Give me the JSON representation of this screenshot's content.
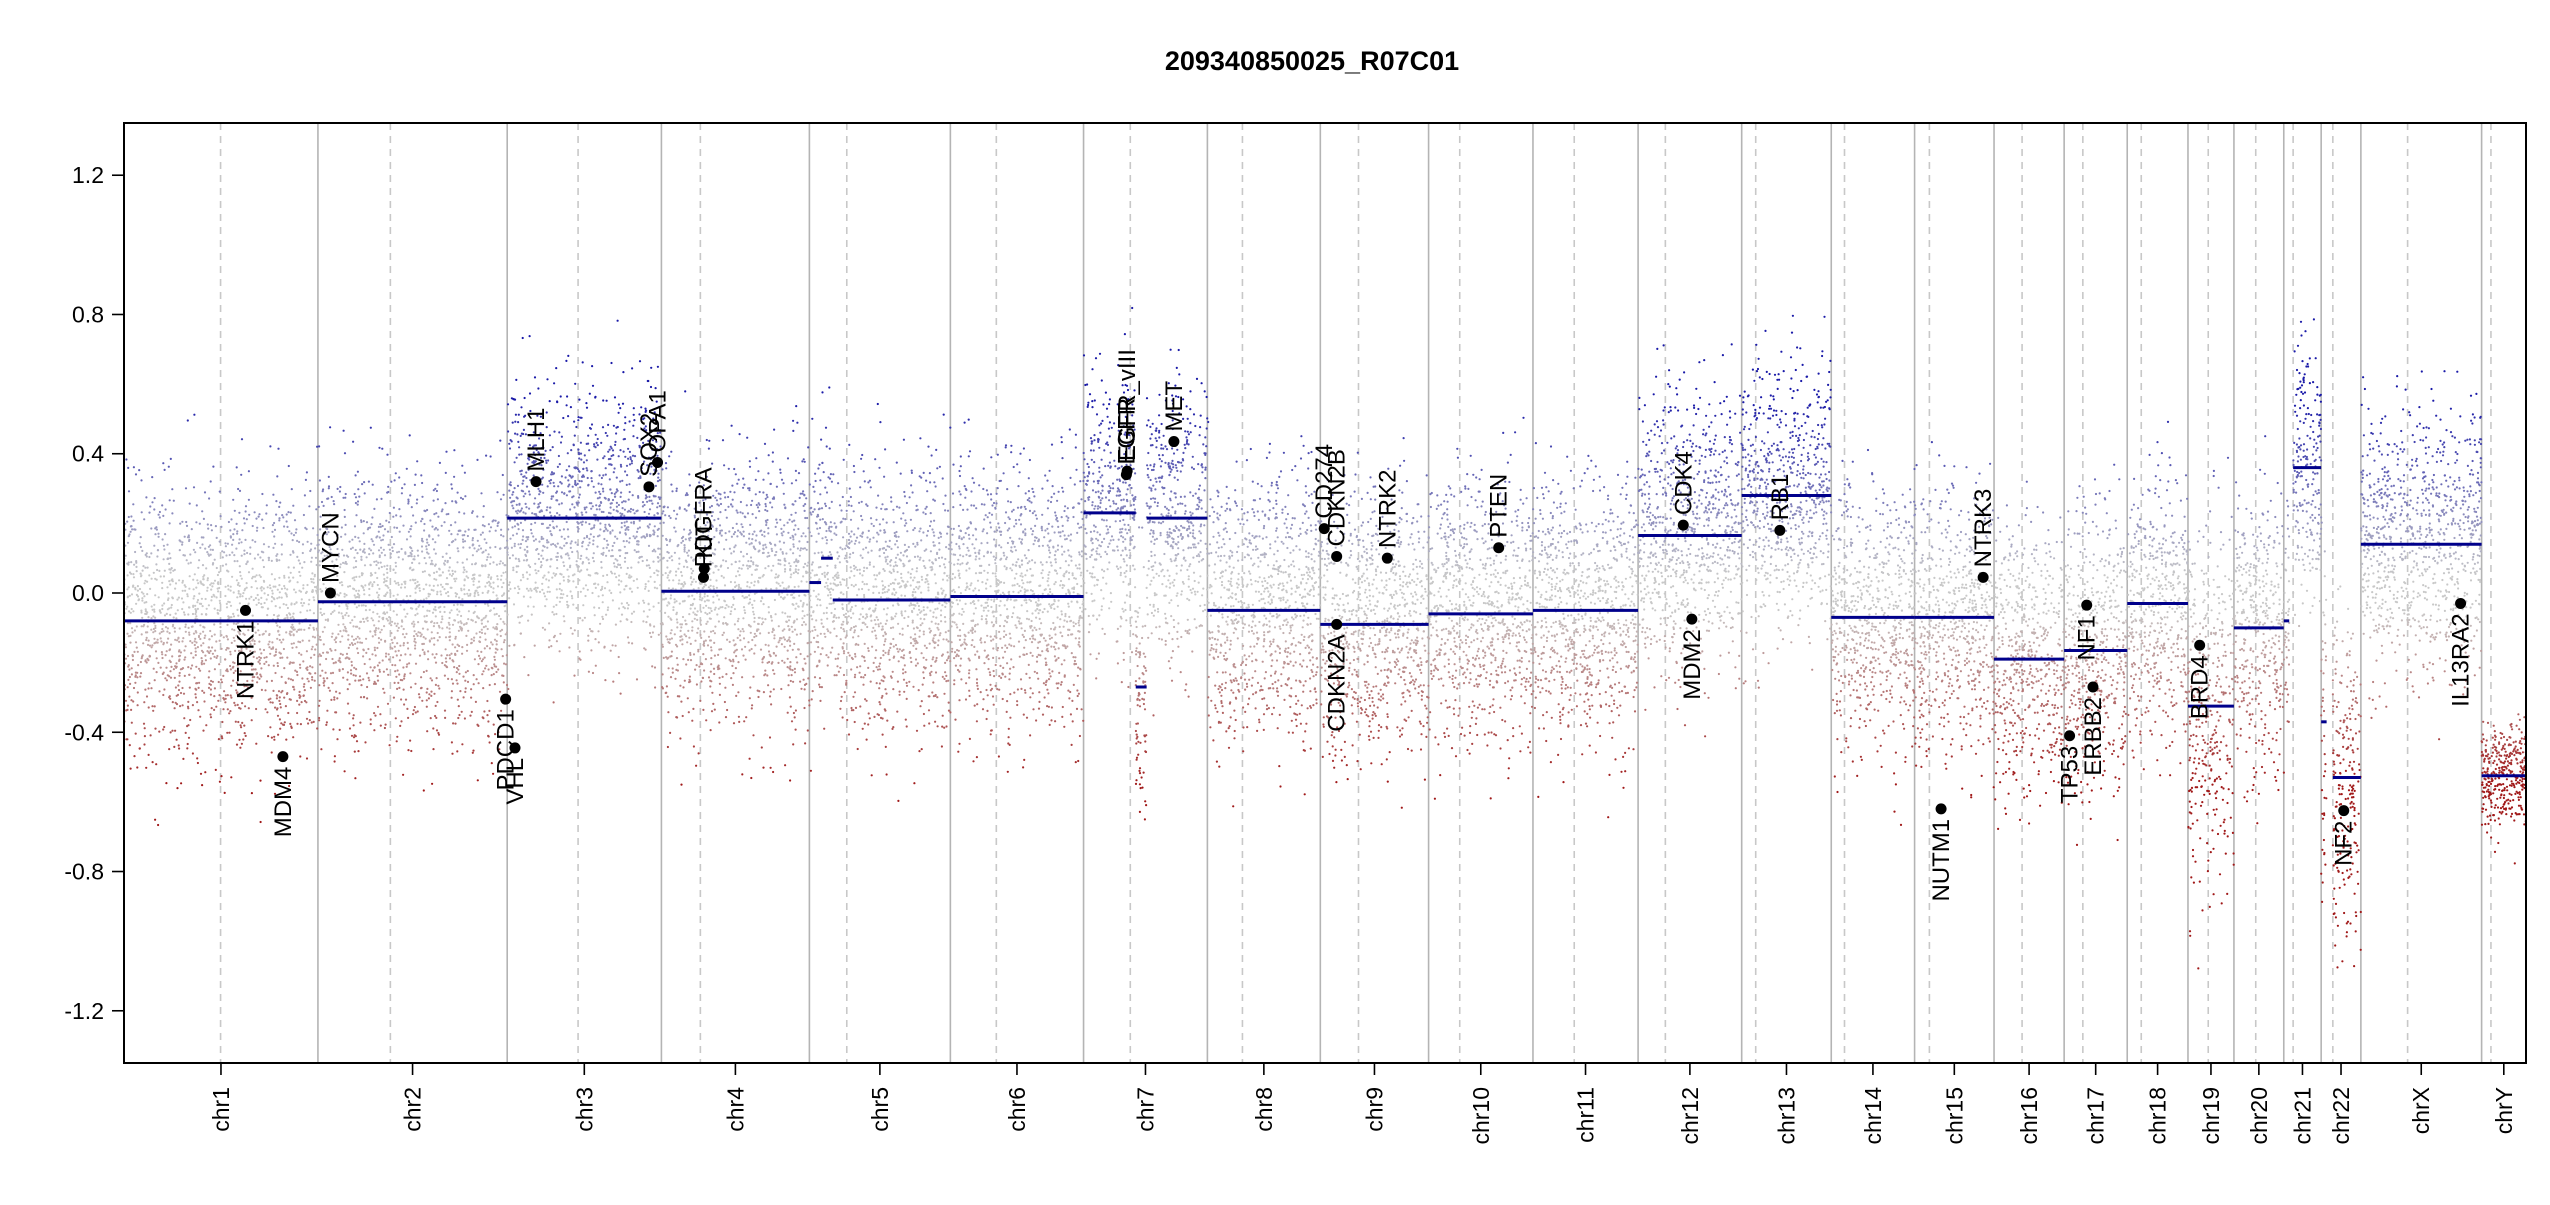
{
  "chart_data": {
    "type": "scatter",
    "title": "209340850025_R07C01",
    "xlabel": "",
    "ylabel": "",
    "ylim": [
      -1.35,
      1.35
    ],
    "yticks": [
      -1.2,
      -0.8,
      -0.4,
      0.0,
      0.4,
      0.8,
      1.2
    ],
    "ytick_labels": [
      "-1.2",
      "-0.8",
      "-0.4",
      "0.0",
      "0.4",
      "0.8",
      "1.2"
    ],
    "grid": false,
    "x_unit": "Mb (cumulative genome position)",
    "colors": {
      "gain": "#1a1aa8",
      "loss": "#a01818",
      "neutral": "#c8c8c8",
      "segment": "#00008b",
      "separator": "#b4b4b4",
      "centromere": "#c8c8c8"
    },
    "chromosomes": [
      {
        "name": "chr1",
        "label": "chr1",
        "start": 0,
        "end": 249,
        "centromere": 124
      },
      {
        "name": "chr2",
        "label": "chr2",
        "start": 249,
        "end": 492,
        "centromere": 342
      },
      {
        "name": "chr3",
        "label": "chr3",
        "start": 492,
        "end": 690,
        "centromere": 583
      },
      {
        "name": "chr4",
        "label": "chr4",
        "start": 690,
        "end": 880,
        "centromere": 740
      },
      {
        "name": "chr5",
        "label": "chr5",
        "start": 880,
        "end": 1061,
        "centromere": 928
      },
      {
        "name": "chr6",
        "label": "chr6",
        "start": 1061,
        "end": 1232,
        "centromere": 1120
      },
      {
        "name": "chr7",
        "label": "chr7",
        "start": 1232,
        "end": 1391,
        "centromere": 1292
      },
      {
        "name": "chr8",
        "label": "chr8",
        "start": 1391,
        "end": 1536,
        "centromere": 1436
      },
      {
        "name": "chr9",
        "label": "chr9",
        "start": 1536,
        "end": 1675,
        "centromere": 1585
      },
      {
        "name": "chr10",
        "label": "chr10",
        "start": 1675,
        "end": 1809,
        "centromere": 1715
      },
      {
        "name": "chr11",
        "label": "chr11",
        "start": 1809,
        "end": 1944,
        "centromere": 1862
      },
      {
        "name": "chr12",
        "label": "chr12",
        "start": 1944,
        "end": 2077,
        "centromere": 1979
      },
      {
        "name": "chr13",
        "label": "chr13",
        "start": 2077,
        "end": 2192,
        "centromere": 2095
      },
      {
        "name": "chr14",
        "label": "chr14",
        "start": 2192,
        "end": 2299,
        "centromere": 2209
      },
      {
        "name": "chr15",
        "label": "chr15",
        "start": 2299,
        "end": 2401,
        "centromere": 2318
      },
      {
        "name": "chr16",
        "label": "chr16",
        "start": 2401,
        "end": 2491,
        "centromere": 2437
      },
      {
        "name": "chr17",
        "label": "chr17",
        "start": 2491,
        "end": 2572,
        "centromere": 2515
      },
      {
        "name": "chr18",
        "label": "chr18",
        "start": 2572,
        "end": 2650,
        "centromere": 2590
      },
      {
        "name": "chr19",
        "label": "chr19",
        "start": 2650,
        "end": 2709,
        "centromere": 2676
      },
      {
        "name": "chr20",
        "label": "chr20",
        "start": 2709,
        "end": 2773,
        "centromere": 2737
      },
      {
        "name": "chr21",
        "label": "chr21",
        "start": 2773,
        "end": 2821,
        "centromere": 2785
      },
      {
        "name": "chr22",
        "label": "chr22",
        "start": 2821,
        "end": 2872,
        "centromere": 2836
      },
      {
        "name": "chrX",
        "label": "chrX",
        "start": 2872,
        "end": 3027,
        "centromere": 2932
      },
      {
        "name": "chrY",
        "label": "chrY",
        "start": 3027,
        "end": 3084,
        "centromere": 3039
      }
    ],
    "segments": [
      {
        "chrom": "chr1",
        "start": 0,
        "end": 249,
        "value": -0.08
      },
      {
        "chrom": "chr2",
        "start": 249,
        "end": 492,
        "value": -0.025
      },
      {
        "chrom": "chr3",
        "start": 492,
        "end": 690,
        "value": 0.215
      },
      {
        "chrom": "chr4",
        "start": 690,
        "end": 880,
        "value": 0.005
      },
      {
        "chrom": "chr5",
        "start": 880,
        "end": 895,
        "value": 0.03
      },
      {
        "chrom": "chr5",
        "start": 895,
        "end": 910,
        "value": 0.1
      },
      {
        "chrom": "chr5",
        "start": 910,
        "end": 1061,
        "value": -0.02
      },
      {
        "chrom": "chr6",
        "start": 1061,
        "end": 1232,
        "value": -0.01
      },
      {
        "chrom": "chr7",
        "start": 1232,
        "end": 1299,
        "value": 0.23
      },
      {
        "chrom": "chr7",
        "start": 1299,
        "end": 1313,
        "value": -0.27
      },
      {
        "chrom": "chr7",
        "start": 1313,
        "end": 1391,
        "value": 0.215
      },
      {
        "chrom": "chr8",
        "start": 1391,
        "end": 1536,
        "value": -0.05
      },
      {
        "chrom": "chr9",
        "start": 1536,
        "end": 1675,
        "value": -0.09
      },
      {
        "chrom": "chr10",
        "start": 1675,
        "end": 1809,
        "value": -0.06
      },
      {
        "chrom": "chr11",
        "start": 1809,
        "end": 1944,
        "value": -0.05
      },
      {
        "chrom": "chr12",
        "start": 1944,
        "end": 2077,
        "value": 0.165
      },
      {
        "chrom": "chr13",
        "start": 2077,
        "end": 2192,
        "value": 0.28
      },
      {
        "chrom": "chr14",
        "start": 2192,
        "end": 2299,
        "value": -0.07
      },
      {
        "chrom": "chr15",
        "start": 2299,
        "end": 2401,
        "value": -0.07
      },
      {
        "chrom": "chr16",
        "start": 2401,
        "end": 2491,
        "value": -0.19
      },
      {
        "chrom": "chr17",
        "start": 2491,
        "end": 2572,
        "value": -0.165
      },
      {
        "chrom": "chr18",
        "start": 2572,
        "end": 2650,
        "value": -0.03
      },
      {
        "chrom": "chr19",
        "start": 2650,
        "end": 2709,
        "value": -0.325
      },
      {
        "chrom": "chr20",
        "start": 2709,
        "end": 2773,
        "value": -0.1
      },
      {
        "chrom": "chr21",
        "start": 2773,
        "end": 2780,
        "value": -0.08
      },
      {
        "chrom": "chr21",
        "start": 2785,
        "end": 2821,
        "value": 0.36
      },
      {
        "chrom": "chr22",
        "start": 2821,
        "end": 2828,
        "value": -0.37
      },
      {
        "chrom": "chr22",
        "start": 2836,
        "end": 2872,
        "value": -0.53
      },
      {
        "chrom": "chrX",
        "start": 2872,
        "end": 3027,
        "value": 0.14
      },
      {
        "chrom": "chrY",
        "start": 3027,
        "end": 3084,
        "value": -0.525
      }
    ],
    "genes": [
      {
        "name": "NTRK1",
        "x": 156,
        "y": -0.05,
        "label_side": "below"
      },
      {
        "name": "MDM4",
        "x": 204,
        "y": -0.47,
        "label_side": "below"
      },
      {
        "name": "MYCN",
        "x": 265,
        "y": 0.0,
        "label_side": "above"
      },
      {
        "name": "PDCD1",
        "x": 490,
        "y": -0.305,
        "label_side": "below"
      },
      {
        "name": "VHL",
        "x": 502,
        "y": -0.445,
        "label_side": "below"
      },
      {
        "name": "MLH1",
        "x": 529,
        "y": 0.32,
        "label_side": "above"
      },
      {
        "name": "SOX2",
        "x": 674,
        "y": 0.305,
        "label_side": "above"
      },
      {
        "name": "OPA1",
        "x": 685,
        "y": 0.375,
        "label_side": "above"
      },
      {
        "name": "KIT",
        "x": 745,
        "y": 0.07,
        "label_side": "above"
      },
      {
        "name": "PDGFRA",
        "x": 744,
        "y": 0.045,
        "label_side": "above"
      },
      {
        "name": "EGFR",
        "x": 1287,
        "y": 0.34,
        "label_side": "above"
      },
      {
        "name": "EGFR_vIII",
        "x": 1288,
        "y": 0.35,
        "label_side": "above"
      },
      {
        "name": "MET",
        "x": 1348,
        "y": 0.435,
        "label_side": "above"
      },
      {
        "name": "CD274",
        "x": 1541,
        "y": 0.185,
        "label_side": "above"
      },
      {
        "name": "CDKN2B",
        "x": 1557,
        "y": 0.105,
        "label_side": "above"
      },
      {
        "name": "CDKN2A",
        "x": 1557,
        "y": -0.09,
        "label_side": "below"
      },
      {
        "name": "NTRK2",
        "x": 1622,
        "y": 0.1,
        "label_side": "above"
      },
      {
        "name": "PTEN",
        "x": 1765,
        "y": 0.13,
        "label_side": "above"
      },
      {
        "name": "CDK4",
        "x": 2002,
        "y": 0.195,
        "label_side": "above"
      },
      {
        "name": "MDM2",
        "x": 2013,
        "y": -0.075,
        "label_side": "below"
      },
      {
        "name": "RB1",
        "x": 2126,
        "y": 0.18,
        "label_side": "above"
      },
      {
        "name": "NUTM1",
        "x": 2333,
        "y": -0.62,
        "label_side": "below"
      },
      {
        "name": "NTRK3",
        "x": 2387,
        "y": 0.045,
        "label_side": "above"
      },
      {
        "name": "TP53",
        "x": 2498,
        "y": -0.41,
        "label_side": "below"
      },
      {
        "name": "NF1",
        "x": 2520,
        "y": -0.035,
        "label_side": "below"
      },
      {
        "name": "ERBB2",
        "x": 2528,
        "y": -0.27,
        "label_side": "below"
      },
      {
        "name": "BRD4",
        "x": 2665,
        "y": -0.15,
        "label_side": "below"
      },
      {
        "name": "NF2",
        "x": 2850,
        "y": -0.625,
        "label_side": "below"
      },
      {
        "name": "IL13RA2",
        "x": 3000,
        "y": -0.03,
        "label_side": "below"
      }
    ],
    "gene_label_text": {
      "NTRK1": "NTRK1",
      "MDM4": "MDM4",
      "MYCN": "MYCN",
      "PDCD1": "PDCD1",
      "VHL": "VHL",
      "MLH1": "MLH1",
      "SOX2": "SOX2",
      "OPA1": "OPA1",
      "KIT": "KIT",
      "PDGFRA": "PDGFRA",
      "EGFR": "EGFR",
      "EGFR_vIII": "EGFR_vIII",
      "MET": "MET",
      "CD274": "CD274",
      "CDKN2B": "CDKN2B",
      "CDKN2A": "CDKN2A",
      "NTRK2": "NTRK2",
      "PTEN": "PTEN",
      "CDK4": "CDK4",
      "MDM2": "MDM2",
      "RB1": "RB1",
      "NUTM1": "NUTM1",
      "NTRK3": "NTRK3",
      "TP53": "TP53",
      "NF1": "NF1",
      "ERBB2": "ERBB2",
      "BRD4": "BRD4",
      "NF2": "NF2",
      "IL13RA2": "IL13RA2"
    },
    "probe_scatter_note": "thousands of individual probe log2 ratios per chromosome; rendered procedurally around segment means"
  }
}
